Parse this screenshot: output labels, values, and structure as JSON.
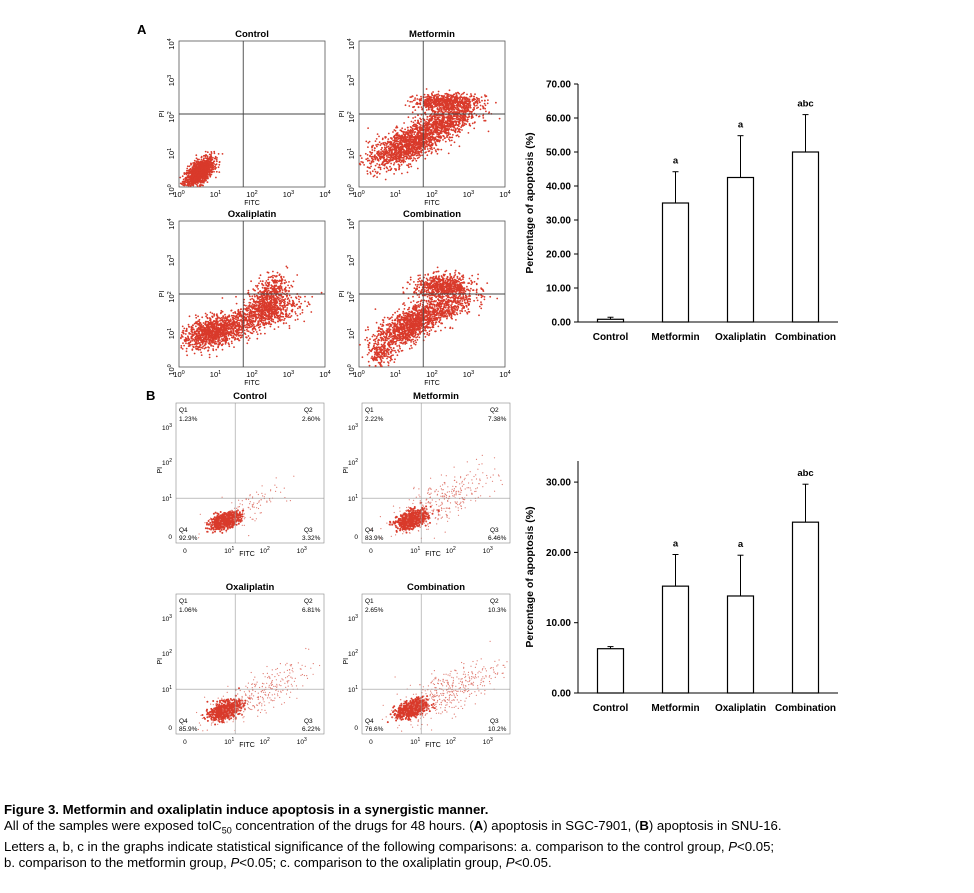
{
  "panels": [
    {
      "letter": "A",
      "flow": [
        {
          "title": "Control",
          "xlabel": "FITC",
          "ylabel": "PI"
        },
        {
          "title": "Metformin",
          "xlabel": "FITC",
          "ylabel": "PI"
        },
        {
          "title": "Oxaliplatin",
          "xlabel": "FITC",
          "ylabel": "PI"
        },
        {
          "title": "Combination",
          "xlabel": "FITC",
          "ylabel": "PI"
        }
      ]
    },
    {
      "letter": "B",
      "flow": [
        {
          "title": "Control",
          "xlabel": "FITC",
          "ylabel": "PI",
          "quadrants": {
            "Q1": "1.23%",
            "Q2": "2.60%",
            "Q3": "3.32%",
            "Q4": "92.9%"
          }
        },
        {
          "title": "Metformin",
          "xlabel": "FITC",
          "ylabel": "PI",
          "quadrants": {
            "Q1": "2.22%",
            "Q2": "7.38%",
            "Q3": "6.46%",
            "Q4": "83.9%"
          }
        },
        {
          "title": "Oxaliplatin",
          "xlabel": "FITC",
          "ylabel": "PI",
          "quadrants": {
            "Q1": "1.06%",
            "Q2": "6.81%",
            "Q3": "6.22%",
            "Q4": "85.9%"
          }
        },
        {
          "title": "Combination",
          "xlabel": "FITC",
          "ylabel": "PI",
          "quadrants": {
            "Q1": "2.65%",
            "Q2": "10.3%",
            "Q3": "10.2%",
            "Q4": "76.6%"
          }
        }
      ]
    }
  ],
  "chart_data": [
    {
      "type": "bar",
      "categories": [
        "Control",
        "Metformin",
        "Oxaliplatin",
        "Combination"
      ],
      "values": [
        0.8,
        35.0,
        42.5,
        50.0
      ],
      "errors": [
        0.6,
        9.2,
        12.3,
        11.0
      ],
      "significance": [
        "",
        "a",
        "a",
        "abc"
      ],
      "ylabel": "Percentage of apoptosis (%)",
      "ylim": [
        0,
        70
      ],
      "yticks": [
        "0.00",
        "10.00",
        "20.00",
        "30.00",
        "40.00",
        "50.00",
        "60.00",
        "70.00"
      ],
      "bar_color": "#ffffff"
    },
    {
      "type": "bar",
      "categories": [
        "Control",
        "Metformin",
        "Oxaliplatin",
        "Combination"
      ],
      "values": [
        6.3,
        15.2,
        13.8,
        24.3
      ],
      "errors": [
        0.3,
        4.5,
        5.8,
        5.4
      ],
      "significance": [
        "",
        "a",
        "a",
        "abc"
      ],
      "ylabel": "Percentage of apoptosis (%)",
      "ylim": [
        0,
        33
      ],
      "yticks": [
        "0.00",
        "10.00",
        "20.00",
        "30.00"
      ],
      "bar_color": "#ffffff"
    }
  ],
  "colors": {
    "dots": "#d93a2b",
    "dots_light": "#e07a70"
  },
  "caption": {
    "title": "Figure 3. Metformin and oxaliplatin induce apoptosis in a synergistic manner.",
    "line1_prefix": "All of the samples were exposed toIC",
    "line1_sub": "50",
    "line1_a": " concentration of the drugs for 48 hours. (",
    "label_a": "A",
    "line1_b": ") apoptosis in SGC-7901, (",
    "label_b": "B",
    "line1_c": ") apoptosis in SNU-16.",
    "line2": "Letters a, b, c in the graphs indicate statistical significance of the following comparisons: a. comparison to the control group, ",
    "p1": "P",
    "line2_end": "<0.05;",
    "line3": "b. comparison to the metformin group, ",
    "p2": "P",
    "line3_mid": "<0.05; c. comparison to the oxaliplatin group, ",
    "p3": "P",
    "line3_end": "<0.05."
  }
}
